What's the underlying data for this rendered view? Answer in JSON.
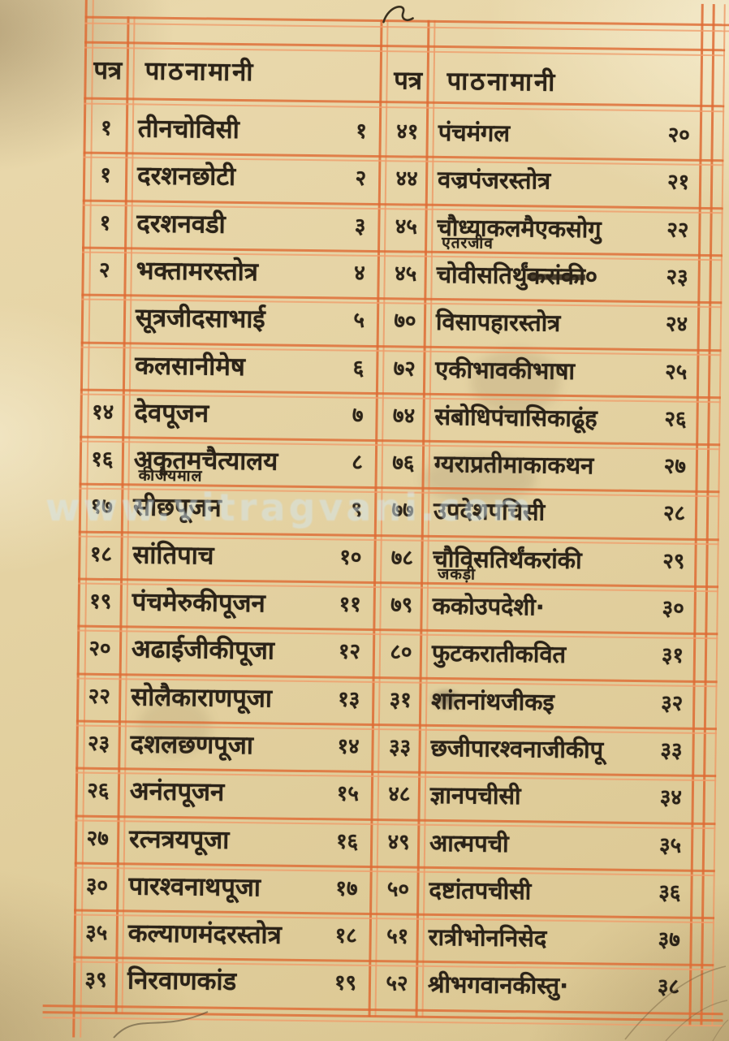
{
  "page": {
    "watermark": "www.vitragvani.com",
    "colors": {
      "rule": "#de6b34",
      "ink": "#2b2318",
      "paper": "#e4d2a2",
      "watermark": "#d4e7f0"
    }
  },
  "left_table": {
    "header": {
      "page_col": "पत्र",
      "name_col": "पाठनामानी"
    },
    "rows": [
      {
        "page": "१",
        "name": "तीनचोविसी",
        "serial": "१"
      },
      {
        "page": "१",
        "name": "दरशनछोटी",
        "serial": "२"
      },
      {
        "page": "१",
        "name": "दरशनवडी",
        "serial": "३"
      },
      {
        "page": "२",
        "name": "भक्तामरस्तोत्र",
        "serial": "४"
      },
      {
        "page": "",
        "name": "सूत्रजीदसाभाई",
        "serial": "५"
      },
      {
        "page": "",
        "name": "कलसानीमेष",
        "serial": "६"
      },
      {
        "page": "१४",
        "name": "देवपूजन",
        "serial": "७"
      },
      {
        "page": "१६",
        "name": "अकृतमचैत्यालय",
        "sub": "कीजेयमाल",
        "serial": "८"
      },
      {
        "page": "१७",
        "name": "सीछपूजन",
        "serial": "९"
      },
      {
        "page": "१८",
        "name": "सांतिपाच",
        "serial": "१०"
      },
      {
        "page": "१९",
        "name": "पंचमेरुकीपूजन",
        "serial": "११"
      },
      {
        "page": "२०",
        "name": "अढाईजीकीपूजा",
        "serial": "१२"
      },
      {
        "page": "२२",
        "name": "सोलैकाराणपूजा",
        "serial": "१३"
      },
      {
        "page": "२३",
        "name": "दशलछणपूजा",
        "serial": "१४"
      },
      {
        "page": "२६",
        "name": "अनंतपूजन",
        "serial": "१५"
      },
      {
        "page": "२७",
        "name": "रत्नत्रयपूजा",
        "serial": "१६"
      },
      {
        "page": "३०",
        "name": "पारश्वनाथपूजा",
        "serial": "१७"
      },
      {
        "page": "३५",
        "name": "कल्याणमंदरस्तोत्र",
        "serial": "१८"
      },
      {
        "page": "३९",
        "name": "निरवाणकांड",
        "serial": "१९"
      }
    ]
  },
  "right_table": {
    "header": {
      "page_col": "पत्र",
      "name_col": "पाठनामानी"
    },
    "rows": [
      {
        "page": "४१",
        "name": "पंचमंगल",
        "serial": "२०"
      },
      {
        "page": "४४",
        "name": "वज्रपंजरस्तोत्र",
        "serial": "२१"
      },
      {
        "page": "४५",
        "name": "चौध्याकलमैएकसोगु",
        "sub": "एतरजीव",
        "serial": "२२"
      },
      {
        "page": "४५",
        "name": "चोवीसतिर्थुं",
        "struck": "करांकी",
        "tail": "०",
        "serial": "२३"
      },
      {
        "page": "७०",
        "name": "विसापहारस्तोत्र",
        "serial": "२४"
      },
      {
        "page": "७२",
        "name": "एकीभावकीभाषा",
        "serial": "२५"
      },
      {
        "page": "७४",
        "name": "संबोधिपंचासिकाढूंह",
        "serial": "२६"
      },
      {
        "page": "७६",
        "name": "ग्यराप्रतीमाकाकथन",
        "serial": "२७"
      },
      {
        "page": "७७",
        "name": "उपदेशपचिसी",
        "serial": "२८"
      },
      {
        "page": "७८",
        "name": "चौविसतिर्थंकरांकी",
        "sub": "जकड़ी",
        "serial": "२९"
      },
      {
        "page": "७९",
        "name": "ककोउपदेशी·",
        "serial": "३०"
      },
      {
        "page": "८०",
        "name": "फुटकरातीकवित",
        "serial": "३१"
      },
      {
        "page": "३१",
        "name": "शांतनांथजीकइ",
        "serial": "३२",
        "blot": true
      },
      {
        "page": "३३",
        "name": "छजीपारश्वनाजीकीपू",
        "serial": "३३"
      },
      {
        "page": "४८",
        "name": "ज्ञानपचीसी",
        "serial": "३४"
      },
      {
        "page": "४९",
        "name": "आत्मपची",
        "serial": "३५"
      },
      {
        "page": "५०",
        "name": "दष्टांतपचीसी",
        "serial": "३६"
      },
      {
        "page": "५१",
        "name": "रात्रीभोननिसेद",
        "serial": "३७"
      },
      {
        "page": "५२",
        "name": "श्रीभगवानकीस्तु·",
        "serial": "३८"
      }
    ]
  }
}
